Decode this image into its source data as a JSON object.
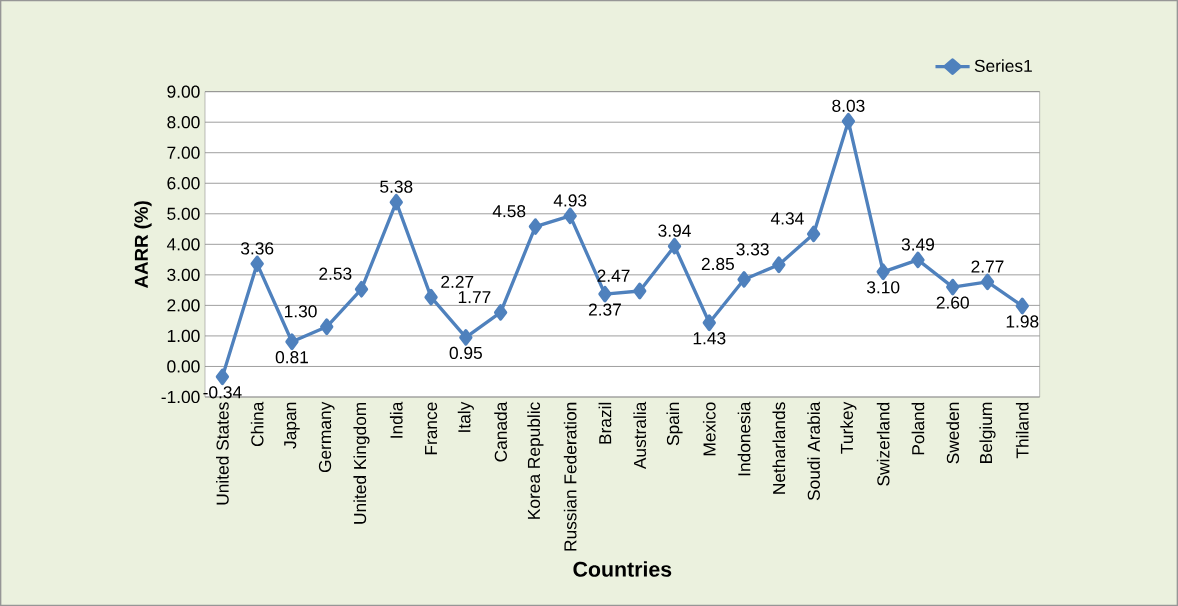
{
  "chart_data": {
    "type": "line",
    "xlabel": "Countries",
    "ylabel": "AARR (%)",
    "categories": [
      "United States",
      "China",
      "Japan",
      "Germany",
      "United Kingdom",
      "India",
      "France",
      "Italy",
      "Canada",
      "Korea Republic",
      "Russian Federation",
      "Brazil",
      "Australia",
      "Spain",
      "Mexico",
      "Indonesia",
      "Netharlands",
      "Soudi Arabia",
      "Turkey",
      "Swizerland",
      "Poland",
      "Sweden",
      "Belgium",
      "Thiland"
    ],
    "series": [
      {
        "name": "Series1",
        "color": "#4f81bd",
        "values": [
          -0.34,
          3.36,
          0.81,
          1.3,
          2.53,
          5.38,
          2.27,
          0.95,
          1.77,
          4.58,
          4.93,
          2.37,
          2.47,
          3.94,
          1.43,
          2.85,
          3.33,
          4.34,
          8.03,
          3.1,
          3.49,
          2.6,
          2.77,
          1.98
        ],
        "value_labels": [
          "-0.34",
          "3.36",
          "0.81",
          "1.30",
          "2.53",
          "5.38",
          "2.27",
          "0.95",
          "1.77",
          "4.58",
          "4.93",
          "2.37",
          "2.47",
          "3.94",
          "1.43",
          "2.85",
          "3.33",
          "4.34",
          "8.03",
          "3.10",
          "3.49",
          "2.60",
          "2.77",
          "1.98"
        ]
      }
    ],
    "ylim": [
      -1,
      9
    ],
    "yticks": [
      {
        "value": -1,
        "label": "-1.00"
      },
      {
        "value": 0,
        "label": "0.00"
      },
      {
        "value": 1,
        "label": "1.00"
      },
      {
        "value": 2,
        "label": "2.00"
      },
      {
        "value": 3,
        "label": "3.00"
      },
      {
        "value": 4,
        "label": "4.00"
      },
      {
        "value": 5,
        "label": "5.00"
      },
      {
        "value": 6,
        "label": "6.00"
      },
      {
        "value": 7,
        "label": "7.00"
      },
      {
        "value": 8,
        "label": "8.00"
      },
      {
        "value": 9,
        "label": "9.00"
      }
    ],
    "grid": "y",
    "legend": "top right",
    "marker": "diamond",
    "line_style": "solid"
  }
}
